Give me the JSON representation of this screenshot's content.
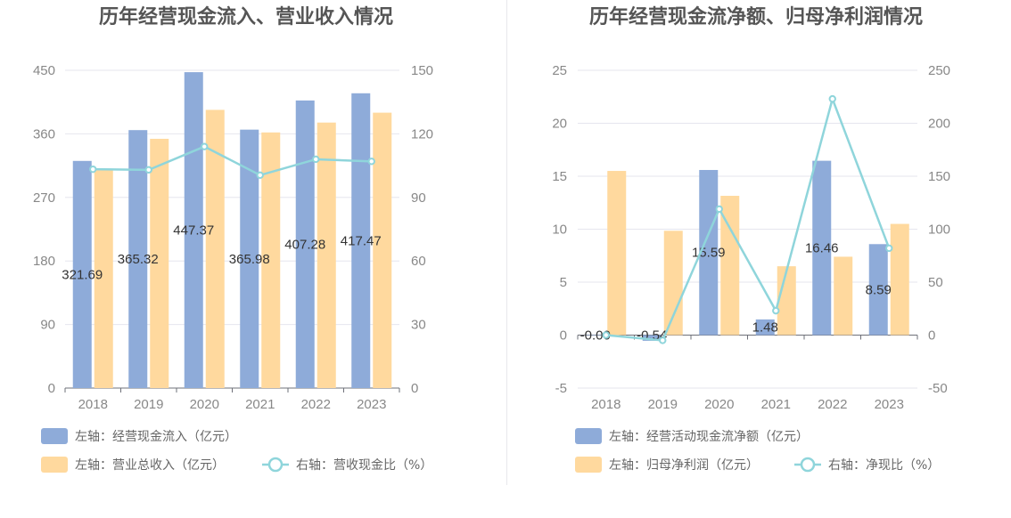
{
  "chart_data": [
    {
      "type": "bar",
      "title": "历年经营现金流入、营业收入情况",
      "categories": [
        "2018",
        "2019",
        "2020",
        "2021",
        "2022",
        "2023"
      ],
      "y_left": {
        "min": 0,
        "max": 450,
        "ticks": [
          "0",
          "90",
          "180",
          "270",
          "360",
          "450"
        ]
      },
      "y_right": {
        "min": 0,
        "max": 150,
        "ticks": [
          "0",
          "30",
          "60",
          "90",
          "120",
          "150"
        ]
      },
      "series": [
        {
          "name": "左轴：经营现金流入（亿元）",
          "type": "bar",
          "axis": "left",
          "color": "#8eabd9",
          "values": [
            321.69,
            365.32,
            447.37,
            365.98,
            407.28,
            417.47
          ],
          "labels": [
            "321.69",
            "365.32",
            "447.37",
            "365.98",
            "407.28",
            "417.47"
          ]
        },
        {
          "name": "左轴：营业总收入（亿元）",
          "type": "bar",
          "axis": "left",
          "color": "#ffd99e",
          "values": [
            310,
            353,
            394,
            362,
            376,
            390
          ]
        },
        {
          "name": "右轴：营收现金比（%）",
          "type": "line",
          "axis": "right",
          "color": "#8fd5db",
          "values": [
            103.3,
            103.0,
            114.0,
            100.5,
            108.0,
            107.0
          ]
        }
      ],
      "legend_position": "bottom-left",
      "grid": true
    },
    {
      "type": "bar",
      "title": "历年经营现金流净额、归母净利润情况",
      "categories": [
        "2018",
        "2019",
        "2020",
        "2021",
        "2022",
        "2023"
      ],
      "y_left": {
        "min": -5,
        "max": 25,
        "ticks": [
          "-5",
          "0",
          "5",
          "10",
          "15",
          "20",
          "25"
        ]
      },
      "y_right": {
        "min": -50,
        "max": 250,
        "ticks": [
          "-50",
          "0",
          "50",
          "100",
          "150",
          "200",
          "250"
        ]
      },
      "series": [
        {
          "name": "左轴：经营活动现金流净额（亿元）",
          "type": "bar",
          "axis": "left",
          "color": "#8eabd9",
          "values": [
            -0.001,
            -0.54,
            15.59,
            1.48,
            16.46,
            8.59
          ],
          "labels": [
            "-0.00",
            "-0.54",
            "15.59",
            "1.48",
            "16.46",
            "8.59"
          ]
        },
        {
          "name": "左轴：归母净利润（亿元）",
          "type": "bar",
          "axis": "left",
          "color": "#ffd99e",
          "values": [
            15.5,
            9.85,
            13.15,
            6.5,
            7.4,
            10.5
          ]
        },
        {
          "name": "右轴：净现比（%）",
          "type": "line",
          "axis": "right",
          "color": "#8fd5db",
          "values": [
            0,
            -5,
            119,
            23,
            223,
            82
          ]
        }
      ],
      "legend_position": "bottom-left",
      "grid": true
    }
  ]
}
